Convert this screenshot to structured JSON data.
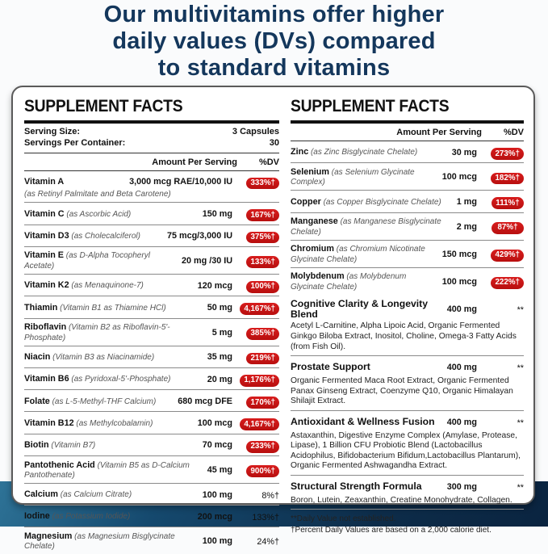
{
  "colors": {
    "headline_navy": "#14375c",
    "badge_red": "#c41616",
    "band_blue_dark": "#0d2c49",
    "band_blue_light": "#2e7397"
  },
  "header": {
    "title_lines": [
      "Our multivitamins offer higher",
      "daily values (DVs) compared",
      "to standard vitamins"
    ]
  },
  "left_panel": {
    "title": "SUPPLEMENT FACTS",
    "serving_rows": [
      {
        "label": "Serving Size:",
        "value": "3 Capsules"
      },
      {
        "label": "Servings Per Container:",
        "value": "30"
      }
    ],
    "col_headers": {
      "amount": "Amount Per Serving",
      "dv": "%DV"
    },
    "rows": [
      {
        "name": "Vitamin A",
        "desc": "(as Retinyl Palmitate and Beta Carotene)",
        "desc_block": true,
        "amount": "3,000 mcg RAE/10,000 IU",
        "dv": "333%†",
        "badge": true
      },
      {
        "name": "Vitamin C",
        "desc": "(as Ascorbic Acid)",
        "amount": "150 mg",
        "dv": "167%†",
        "badge": true
      },
      {
        "name": "Vitamin D3",
        "desc": "(as Cholecalciferol)",
        "amount": "75 mcg/3,000 IU",
        "dv": "375%†",
        "badge": true
      },
      {
        "name": "Vitamin E",
        "desc": "(as D-Alpha Tocopheryl Acetate)",
        "amount": "20 mg /30 IU",
        "dv": "133%†",
        "badge": true
      },
      {
        "name": "Vitamin K2",
        "desc": "(as Menaquinone-7)",
        "amount": "120 mcg",
        "dv": "100%†",
        "badge": true
      },
      {
        "name": "Thiamin",
        "desc": "(Vitamin B1 as Thiamine HCl)",
        "amount": "50 mg",
        "dv": "4,167%†",
        "badge": true
      },
      {
        "name": "Riboflavin",
        "desc": "(Vitamin B2 as Riboflavin-5'-Phosphate)",
        "amount": "5 mg",
        "dv": "385%†",
        "badge": true
      },
      {
        "name": "Niacin",
        "desc": "(Vitamin B3 as Niacinamide)",
        "amount": "35 mg",
        "dv": "219%†",
        "badge": true
      },
      {
        "name": "Vitamin B6",
        "desc": "(as Pyridoxal-5'-Phosphate)",
        "amount": "20 mg",
        "dv": "1,176%†",
        "badge": true
      },
      {
        "name": "Folate",
        "desc": "(as L-5-Methyl-THF Calcium)",
        "amount": "680 mcg DFE",
        "dv": "170%†",
        "badge": true
      },
      {
        "name": "Vitamin B12",
        "desc": "(as Methylcobalamin)",
        "amount": "100 mcg",
        "dv": "4,167%†",
        "badge": true
      },
      {
        "name": "Biotin",
        "desc": "(Vitamin B7)",
        "amount": "70 mcg",
        "dv": "233%†",
        "badge": true
      },
      {
        "name": "Pantothenic Acid",
        "desc": "(Vitamin B5 as D-Calcium Pantothenate)",
        "amount": "45 mg",
        "dv": "900%†",
        "badge": true
      },
      {
        "name": "Calcium",
        "desc": "(as Calcium Citrate)",
        "amount": "100 mg",
        "dv": "8%†",
        "badge": false
      },
      {
        "name": "Iodine",
        "desc": "(as Potassium Iodide)",
        "amount": "200 mcg",
        "dv": "133%†",
        "badge": false
      },
      {
        "name": "Magnesium",
        "desc": "(as Magnesium Bisglycinate Chelate)",
        "amount": "100 mg",
        "dv": "24%†",
        "badge": false
      }
    ]
  },
  "right_panel": {
    "title": "SUPPLEMENT FACTS",
    "col_headers": {
      "amount": "Amount Per Serving",
      "dv": "%DV"
    },
    "rows": [
      {
        "name": "Zinc",
        "desc": "(as Zinc Bisglycinate Chelate)",
        "amount": "30 mg",
        "dv": "273%†",
        "badge": true
      },
      {
        "name": "Selenium",
        "desc": "(as Selenium Glycinate Complex)",
        "amount": "100 mcg",
        "dv": "182%†",
        "badge": true
      },
      {
        "name": "Copper",
        "desc": "(as Copper Bisglycinate Chelate)",
        "amount": "1 mg",
        "dv": "111%†",
        "badge": true
      },
      {
        "name": "Manganese",
        "desc": "(as Manganese Bisglycinate Chelate)",
        "amount": "2 mg",
        "dv": "87%†",
        "badge": true
      },
      {
        "name": "Chromium",
        "desc": "(as Chromium Nicotinate Glycinate Chelate)",
        "amount": "150 mcg",
        "dv": "429%†",
        "badge": true
      },
      {
        "name": "Molybdenum",
        "desc": "(as Molybdenum Glycinate Chelate)",
        "amount": "100 mcg",
        "dv": "222%†",
        "badge": true
      }
    ],
    "blends": [
      {
        "name": "Cognitive Clarity & Longevity Blend",
        "amount": "400 mg",
        "dv": "**",
        "ingredients": "Acetyl L-Carnitine, Alpha Lipoic Acid, Organic Fermented Ginkgo Biloba Extract, Inositol, Choline, Omega-3 Fatty Acids (from Fish Oil)."
      },
      {
        "name": "Prostate Support",
        "amount": "400 mg",
        "dv": "**",
        "ingredients": "Organic Fermented Maca Root Extract, Organic Fermented Panax Ginseng Extract, Coenzyme Q10, Organic Himalayan Shilajit Extract."
      },
      {
        "name": "Antioxidant & Wellness Fusion",
        "amount": "400 mg",
        "dv": "**",
        "ingredients": "Astaxanthin, Digestive Enzyme Complex (Amylase, Protease, Lipase), 1 Billion CFU Probiotic Blend (Lactobacillus Acidophilus, Bifidobacterium Bifidum,Lactobacillus Plantarum), Organic Fermented Ashwagandha Extract."
      },
      {
        "name": "Structural Strength Formula",
        "amount": "300 mg",
        "dv": "**",
        "ingredients": "Boron, Lutein, Zeaxanthin, Creatine Monohydrate, Collagen."
      }
    ],
    "footnotes": [
      "**Daily Value not established.",
      "†Percent Daily Values are based on a 2,000 calorie diet."
    ]
  }
}
